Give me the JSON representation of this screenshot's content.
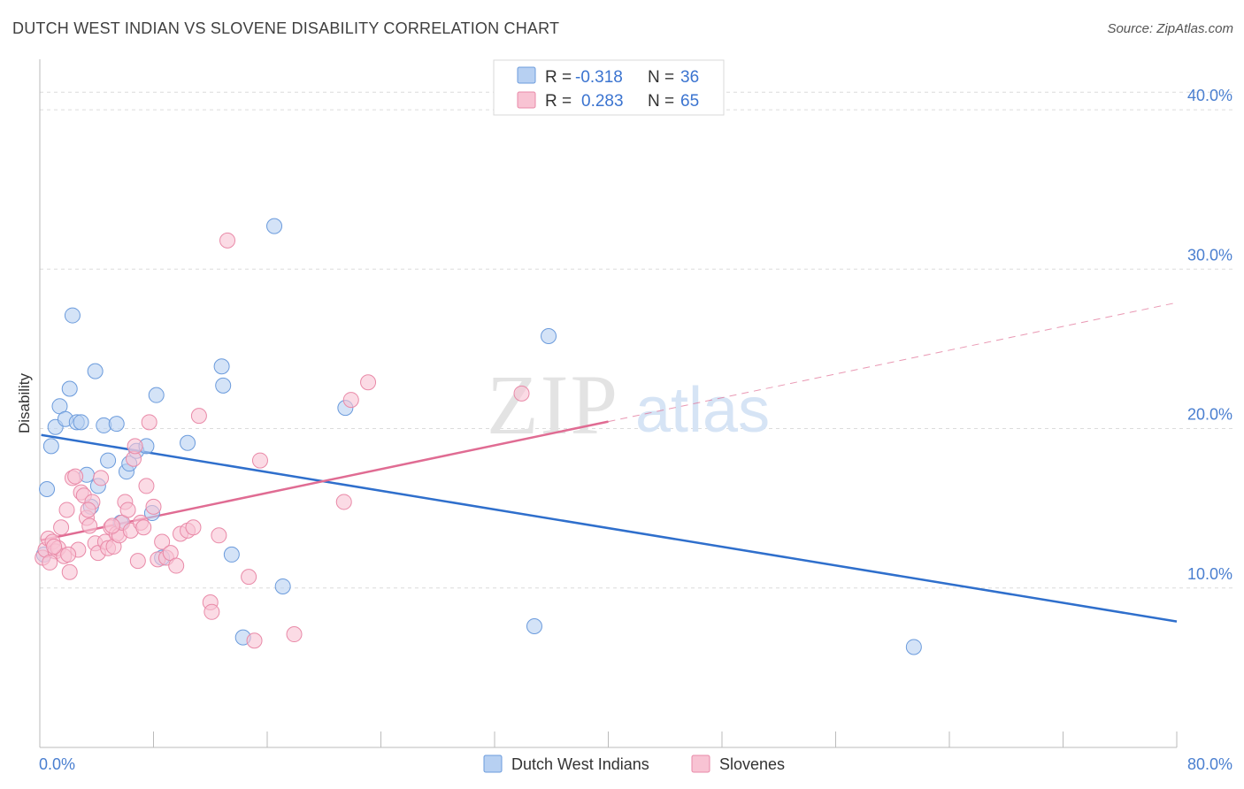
{
  "header": {
    "title": "DUTCH WEST INDIAN VS SLOVENE DISABILITY CORRELATION CHART",
    "source": "Source: ZipAtlas.com"
  },
  "watermark": {
    "zip": "ZIP",
    "atlas": "atlas"
  },
  "legend": {
    "rows": [
      {
        "r_label": "R =",
        "r_value": "-0.318",
        "n_label": "N =",
        "n_value": "36",
        "color": "#b7d0f2",
        "stroke": "#6b9bdc"
      },
      {
        "r_label": "R =",
        "r_value": "0.283",
        "n_label": "N =",
        "n_value": "65",
        "color": "#f8c3d3",
        "stroke": "#e98aa8"
      }
    ]
  },
  "chart_data": {
    "type": "scatter",
    "xlabel": "",
    "ylabel": "Disability",
    "xlim": [
      0,
      80
    ],
    "ylim": [
      0,
      43
    ],
    "x_tick_labels": [
      "0.0%",
      "80.0%"
    ],
    "y_ticks": [
      10,
      20,
      30,
      40
    ],
    "y_tick_labels": [
      "10.0%",
      "20.0%",
      "30.0%",
      "40.0%"
    ],
    "grid": "horizontal dashed",
    "legend_position": "top-center",
    "series": [
      {
        "name": "Dutch West Indians",
        "color": "#b7d0f2",
        "stroke": "#6b9bdc",
        "line_color": "#2f6fcc",
        "trend": {
          "x0": 0.1,
          "y0": 19.6,
          "x1": 80,
          "y1": 7.9,
          "dashed_from": null
        },
        "points": [
          [
            0.5,
            16.2
          ],
          [
            0.8,
            18.9
          ],
          [
            1.1,
            20.1
          ],
          [
            1.4,
            21.4
          ],
          [
            1.8,
            20.6
          ],
          [
            2.1,
            22.5
          ],
          [
            2.3,
            27.1
          ],
          [
            2.6,
            20.4
          ],
          [
            2.9,
            20.4
          ],
          [
            3.3,
            17.1
          ],
          [
            3.6,
            15.1
          ],
          [
            3.9,
            23.6
          ],
          [
            4.1,
            16.4
          ],
          [
            4.5,
            20.2
          ],
          [
            4.8,
            18.0
          ],
          [
            5.4,
            20.3
          ],
          [
            5.7,
            14.1
          ],
          [
            6.1,
            17.3
          ],
          [
            6.3,
            17.8
          ],
          [
            6.8,
            18.6
          ],
          [
            7.5,
            18.9
          ],
          [
            7.9,
            14.7
          ],
          [
            8.2,
            22.1
          ],
          [
            8.6,
            11.9
          ],
          [
            10.4,
            19.1
          ],
          [
            12.8,
            23.9
          ],
          [
            12.9,
            22.7
          ],
          [
            13.5,
            12.1
          ],
          [
            14.3,
            6.9
          ],
          [
            16.5,
            32.7
          ],
          [
            17.1,
            10.1
          ],
          [
            21.5,
            21.3
          ],
          [
            34.8,
            7.6
          ],
          [
            35.8,
            25.8
          ],
          [
            61.5,
            6.3
          ],
          [
            0.3,
            12.1
          ]
        ]
      },
      {
        "name": "Slovenes",
        "color": "#f8c3d3",
        "stroke": "#e98aa8",
        "line_color": "#e06c93",
        "trend": {
          "x0": 0.1,
          "y0": 13.0,
          "x1": 80,
          "y1": 27.9,
          "dashed_from": 40
        },
        "points": [
          [
            0.2,
            11.9
          ],
          [
            0.4,
            12.4
          ],
          [
            0.6,
            13.1
          ],
          [
            0.9,
            12.9
          ],
          [
            1.1,
            12.3
          ],
          [
            1.3,
            12.5
          ],
          [
            1.5,
            13.8
          ],
          [
            1.7,
            12.0
          ],
          [
            1.9,
            14.9
          ],
          [
            2.1,
            11.0
          ],
          [
            2.3,
            16.9
          ],
          [
            2.5,
            17.0
          ],
          [
            2.7,
            12.4
          ],
          [
            2.9,
            16.0
          ],
          [
            3.1,
            15.8
          ],
          [
            3.3,
            14.4
          ],
          [
            3.5,
            13.9
          ],
          [
            3.7,
            15.4
          ],
          [
            3.9,
            12.8
          ],
          [
            4.1,
            12.2
          ],
          [
            4.3,
            16.9
          ],
          [
            4.6,
            12.9
          ],
          [
            4.8,
            12.5
          ],
          [
            5.0,
            13.8
          ],
          [
            5.2,
            12.6
          ],
          [
            5.4,
            13.4
          ],
          [
            5.6,
            13.3
          ],
          [
            5.8,
            14.1
          ],
          [
            6.0,
            15.4
          ],
          [
            6.2,
            14.9
          ],
          [
            6.4,
            13.6
          ],
          [
            6.6,
            18.1
          ],
          [
            6.9,
            11.7
          ],
          [
            7.1,
            14.1
          ],
          [
            7.3,
            13.8
          ],
          [
            7.5,
            16.4
          ],
          [
            7.7,
            20.4
          ],
          [
            8.0,
            15.1
          ],
          [
            8.3,
            11.8
          ],
          [
            8.6,
            12.9
          ],
          [
            8.9,
            11.9
          ],
          [
            9.2,
            12.2
          ],
          [
            9.6,
            11.4
          ],
          [
            9.9,
            13.4
          ],
          [
            10.4,
            13.6
          ],
          [
            10.8,
            13.8
          ],
          [
            11.2,
            20.8
          ],
          [
            12.0,
            9.1
          ],
          [
            12.1,
            8.5
          ],
          [
            12.6,
            13.3
          ],
          [
            13.2,
            31.8
          ],
          [
            14.7,
            10.7
          ],
          [
            15.1,
            6.7
          ],
          [
            15.5,
            18.0
          ],
          [
            17.9,
            7.1
          ],
          [
            21.4,
            15.4
          ],
          [
            21.9,
            21.8
          ],
          [
            23.1,
            22.9
          ],
          [
            33.9,
            22.2
          ],
          [
            6.7,
            18.9
          ],
          [
            2.0,
            12.1
          ],
          [
            1.0,
            12.6
          ],
          [
            3.4,
            14.9
          ],
          [
            5.1,
            13.9
          ],
          [
            0.7,
            11.6
          ]
        ]
      }
    ]
  }
}
